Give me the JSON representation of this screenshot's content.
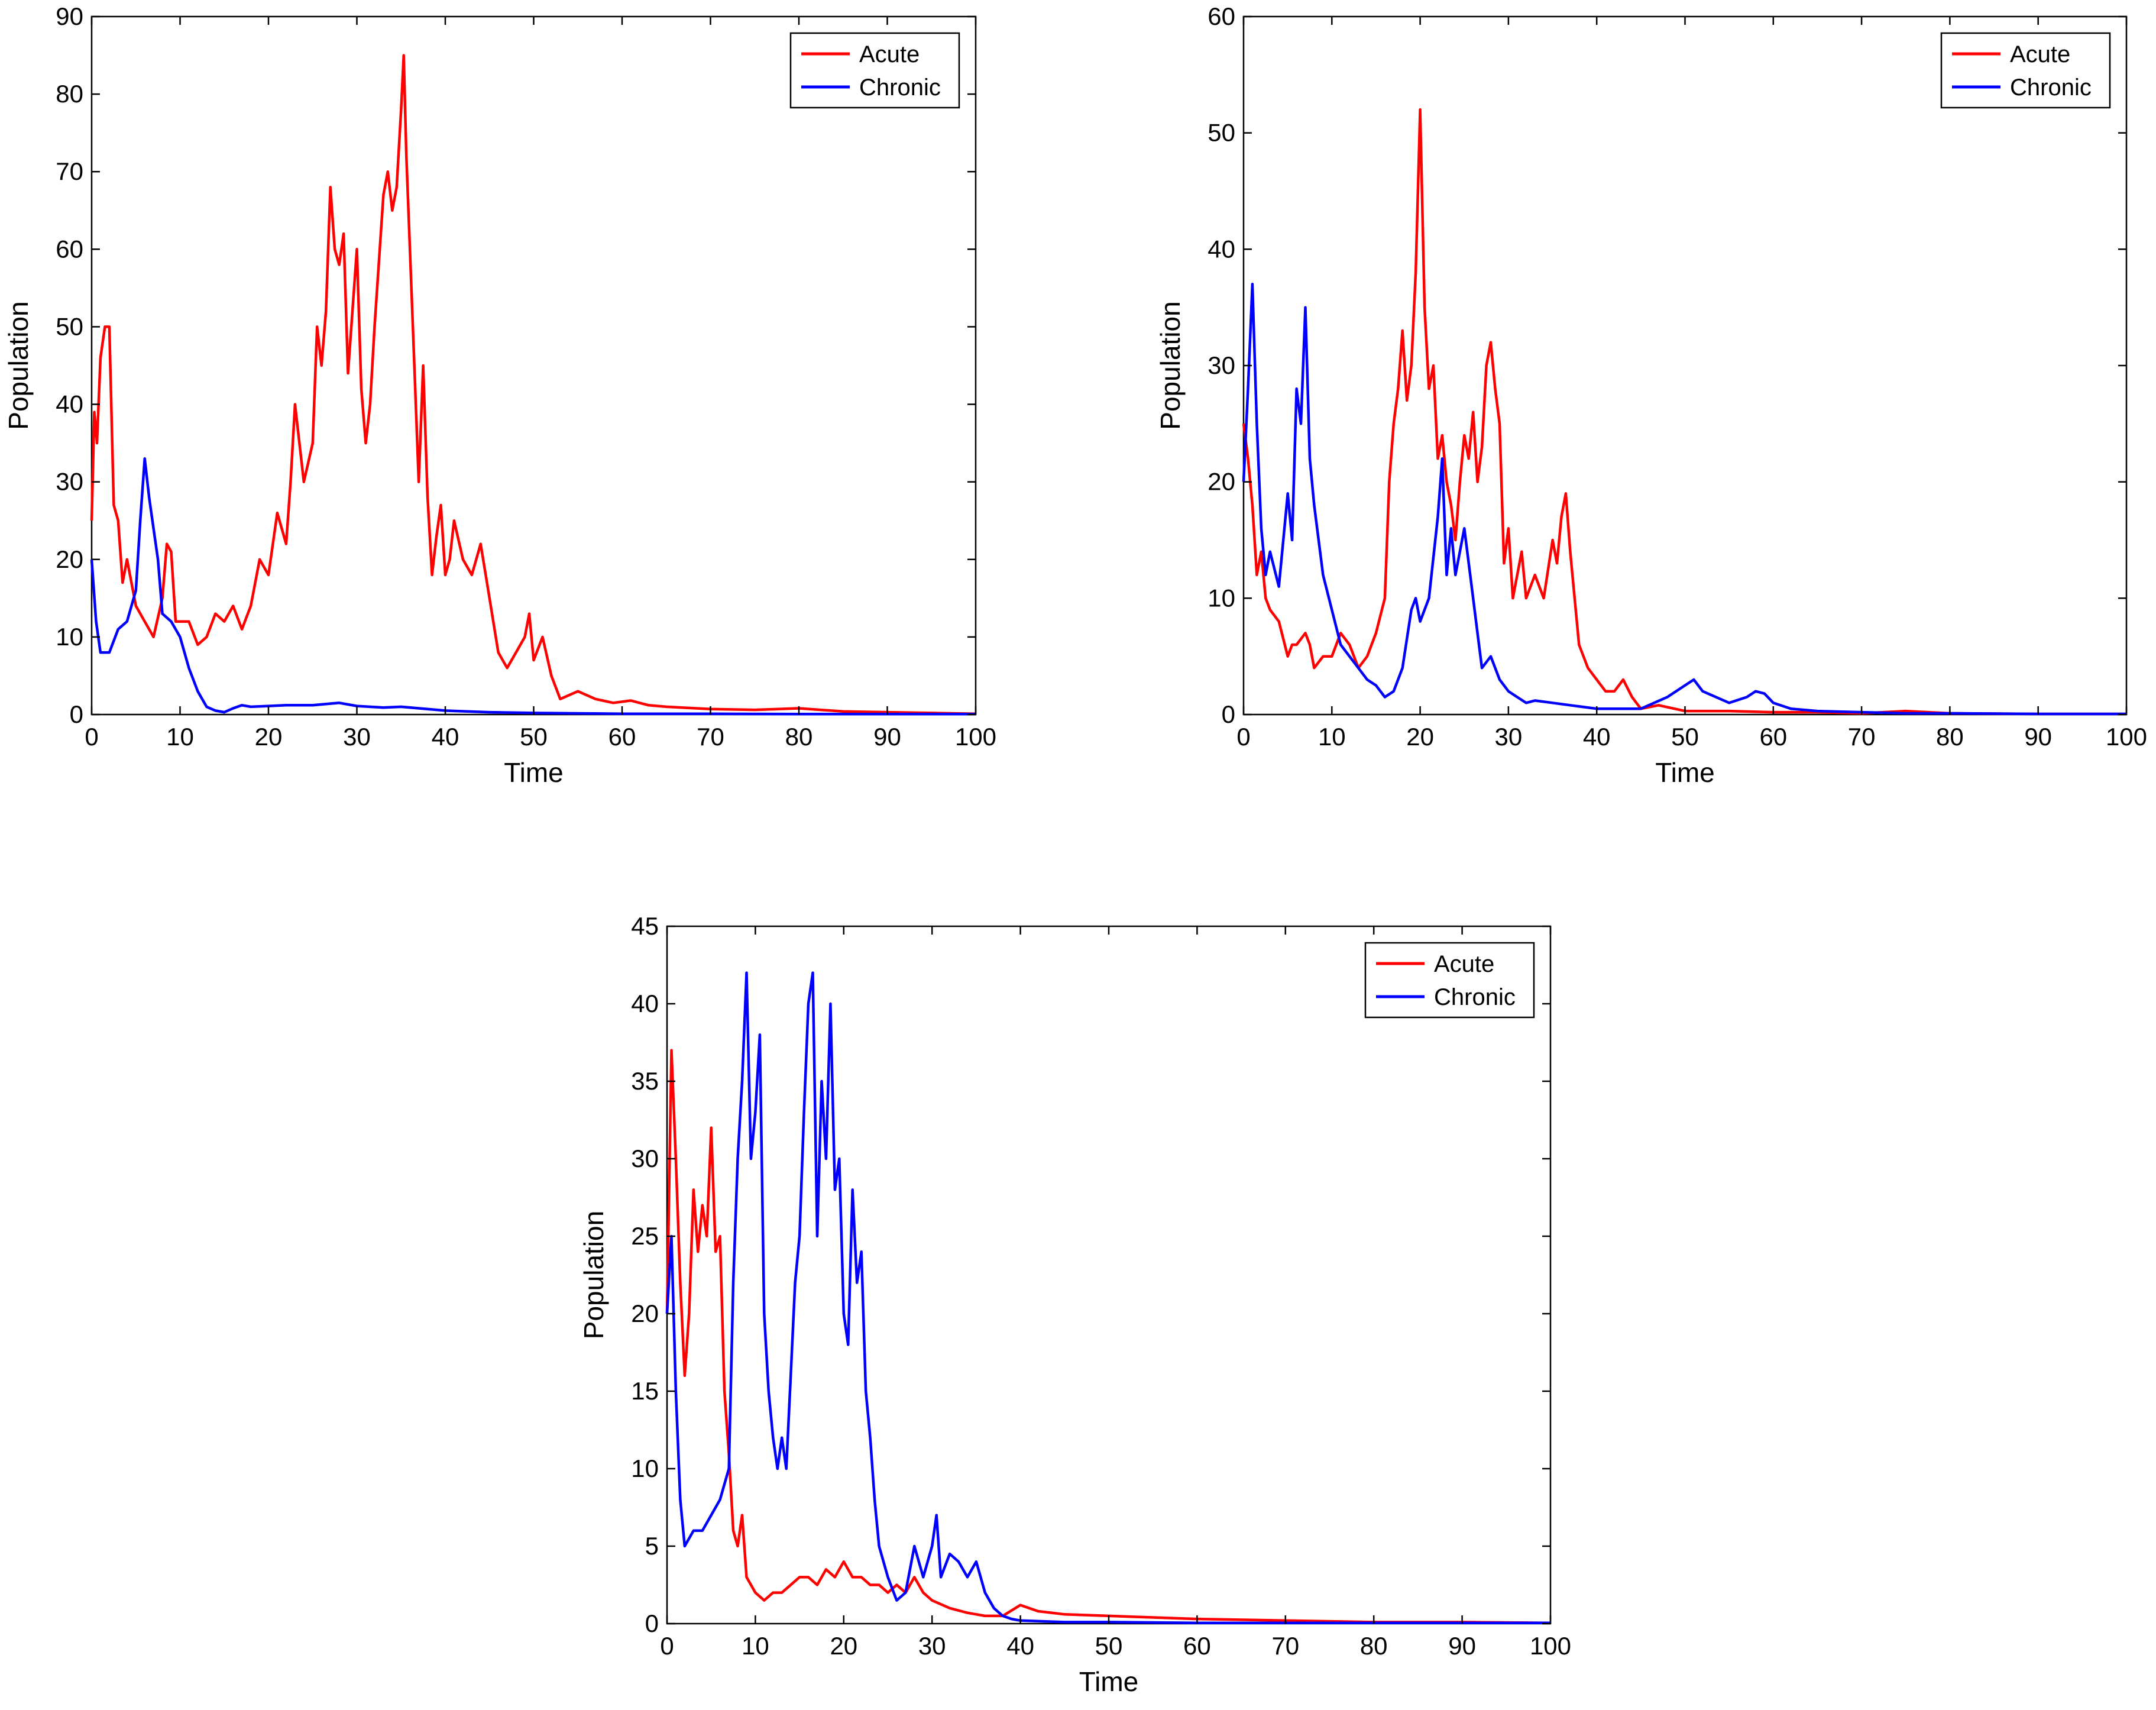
{
  "colors": {
    "acute": "#ff0000",
    "chronic": "#0000ff",
    "axis": "#000000"
  },
  "chart_data": [
    {
      "type": "line",
      "title": "",
      "xlabel": "Time",
      "ylabel": "Population",
      "xlim": [
        0,
        100
      ],
      "ylim": [
        0,
        90
      ],
      "xticks": [
        0,
        10,
        20,
        30,
        40,
        50,
        60,
        70,
        80,
        90,
        100
      ],
      "yticks": [
        0,
        10,
        20,
        30,
        40,
        50,
        60,
        70,
        80,
        90
      ],
      "legend": [
        "Acute",
        "Chronic"
      ],
      "legend_position": "top-right",
      "series": [
        {
          "name": "Acute",
          "color": "#ff0000",
          "x": [
            0,
            0.3,
            0.6,
            1,
            1.5,
            2,
            2.5,
            3,
            3.5,
            4,
            5,
            6,
            7,
            8,
            8.5,
            9,
            9.5,
            10,
            11,
            12,
            13,
            14,
            15,
            16,
            17,
            18,
            19,
            20,
            21,
            22,
            22.5,
            23,
            24,
            25,
            25.5,
            26,
            26.5,
            27,
            27.5,
            28,
            28.5,
            29,
            29.5,
            30,
            30.5,
            31,
            31.5,
            32,
            33,
            33.5,
            34,
            34.5,
            35,
            35.3,
            35.6,
            36,
            36.5,
            37,
            37.5,
            38,
            38.5,
            39,
            39.5,
            40,
            40.5,
            41,
            42,
            43,
            44,
            45,
            46,
            47,
            48,
            49,
            49.5,
            50,
            51,
            52,
            53,
            55,
            57,
            59,
            61,
            63,
            65,
            70,
            75,
            80,
            85,
            90,
            95,
            100
          ],
          "y": [
            25,
            39,
            35,
            46,
            50,
            50,
            27,
            25,
            17,
            20,
            14,
            12,
            10,
            15,
            22,
            21,
            12,
            12,
            12,
            9,
            10,
            13,
            12,
            14,
            11,
            14,
            20,
            18,
            26,
            22,
            30,
            40,
            30,
            35,
            50,
            45,
            52,
            68,
            60,
            58,
            62,
            44,
            52,
            60,
            42,
            35,
            40,
            50,
            67,
            70,
            65,
            68,
            78,
            85,
            72,
            60,
            45,
            30,
            45,
            28,
            18,
            23,
            27,
            18,
            20,
            25,
            20,
            18,
            22,
            15,
            8,
            6,
            8,
            10,
            13,
            7,
            10,
            5,
            2,
            3,
            2,
            1.5,
            1.8,
            1.2,
            1,
            0.7,
            0.6,
            0.8,
            0.4,
            0.3,
            0.2,
            0.1
          ]
        },
        {
          "name": "Chronic",
          "color": "#0000ff",
          "x": [
            0,
            0.5,
            1,
            2,
            3,
            4,
            5,
            5.5,
            6,
            6.5,
            7,
            7.5,
            8,
            9,
            10,
            11,
            12,
            13,
            14,
            15,
            16,
            17,
            18,
            20,
            22,
            25,
            28,
            30,
            33,
            35,
            40,
            45,
            50,
            60,
            70,
            80,
            90,
            100
          ],
          "y": [
            20,
            12,
            8,
            8,
            11,
            12,
            16,
            25,
            33,
            28,
            24,
            20,
            13,
            12,
            10,
            6,
            3,
            1,
            0.5,
            0.3,
            0.8,
            1.2,
            1,
            1.1,
            1.2,
            1.2,
            1.5,
            1.1,
            0.9,
            1,
            0.5,
            0.3,
            0.2,
            0.1,
            0.1,
            0.05,
            0.05,
            0.05
          ]
        }
      ]
    },
    {
      "type": "line",
      "title": "",
      "xlabel": "Time",
      "ylabel": "Population",
      "xlim": [
        0,
        100
      ],
      "ylim": [
        0,
        60
      ],
      "xticks": [
        0,
        10,
        20,
        30,
        40,
        50,
        60,
        70,
        80,
        90,
        100
      ],
      "yticks": [
        0,
        10,
        20,
        30,
        40,
        50,
        60
      ],
      "legend": [
        "Acute",
        "Chronic"
      ],
      "legend_position": "top-right",
      "series": [
        {
          "name": "Acute",
          "color": "#ff0000",
          "x": [
            0,
            0.5,
            1,
            1.5,
            2,
            2.5,
            3,
            4,
            5,
            5.5,
            6,
            7,
            7.5,
            8,
            9,
            10,
            11,
            12,
            13,
            14,
            15,
            16,
            16.5,
            17,
            17.5,
            18,
            18.5,
            19,
            19.5,
            20,
            20.5,
            21,
            21.5,
            22,
            22.5,
            23,
            23.5,
            24,
            24.5,
            25,
            25.5,
            26,
            26.5,
            27,
            27.5,
            28,
            28.5,
            29,
            29.5,
            30,
            30.5,
            31,
            31.5,
            32,
            33,
            34,
            35,
            35.5,
            36,
            36.5,
            37,
            38,
            39,
            40,
            41,
            42,
            43,
            44,
            45,
            47,
            50,
            55,
            60,
            65,
            70,
            75,
            80,
            90,
            100
          ],
          "y": [
            25,
            22,
            18,
            12,
            14,
            10,
            9,
            8,
            5,
            6,
            6,
            7,
            6,
            4,
            5,
            5,
            7,
            6,
            4,
            5,
            7,
            10,
            20,
            25,
            28,
            33,
            27,
            30,
            38,
            52,
            35,
            28,
            30,
            22,
            24,
            20,
            18,
            15,
            20,
            24,
            22,
            26,
            20,
            23,
            30,
            32,
            28,
            25,
            13,
            16,
            10,
            12,
            14,
            10,
            12,
            10,
            15,
            13,
            17,
            19,
            14,
            6,
            4,
            3,
            2,
            2,
            3,
            1.5,
            0.5,
            0.8,
            0.3,
            0.3,
            0.2,
            0.2,
            0.1,
            0.3,
            0.1,
            0.05,
            0.05
          ]
        },
        {
          "name": "Chronic",
          "color": "#0000ff",
          "x": [
            0,
            0.5,
            1,
            1.5,
            2,
            2.5,
            3,
            4,
            5,
            5.5,
            6,
            6.5,
            7,
            7.5,
            8,
            9,
            10,
            11,
            12,
            13,
            14,
            15,
            16,
            17,
            18,
            19,
            19.5,
            20,
            21,
            22,
            22.5,
            23,
            23.5,
            24,
            25,
            26,
            26.5,
            27,
            28,
            29,
            30,
            31,
            32,
            33,
            35,
            37,
            40,
            42,
            45,
            48,
            50,
            51,
            52,
            55,
            57,
            58,
            59,
            60,
            62,
            65,
            70,
            75,
            80,
            90,
            100
          ],
          "y": [
            20,
            28,
            37,
            25,
            16,
            12,
            14,
            11,
            19,
            15,
            28,
            25,
            35,
            22,
            18,
            12,
            9,
            6,
            5,
            4,
            3,
            2.5,
            1.5,
            2,
            4,
            9,
            10,
            8,
            10,
            17,
            22,
            12,
            16,
            12,
            16,
            10,
            7,
            4,
            5,
            3,
            2,
            1.5,
            1,
            1.2,
            1,
            0.8,
            0.5,
            0.5,
            0.5,
            1.5,
            2.5,
            3,
            2,
            1,
            1.5,
            2,
            1.8,
            1,
            0.5,
            0.3,
            0.2,
            0.1,
            0.1,
            0.05,
            0.05
          ]
        }
      ]
    },
    {
      "type": "line",
      "title": "",
      "xlabel": "Time",
      "ylabel": "Population",
      "xlim": [
        0,
        100
      ],
      "ylim": [
        0,
        45
      ],
      "xticks": [
        0,
        10,
        20,
        30,
        40,
        50,
        60,
        70,
        80,
        90,
        100
      ],
      "yticks": [
        0,
        5,
        10,
        15,
        20,
        25,
        30,
        35,
        40,
        45
      ],
      "legend": [
        "Acute",
        "Chronic"
      ],
      "legend_position": "top-right",
      "series": [
        {
          "name": "Acute",
          "color": "#ff0000",
          "x": [
            0,
            0.5,
            1,
            1.5,
            2,
            2.5,
            3,
            3.5,
            4,
            4.5,
            5,
            5.5,
            6,
            6.5,
            7,
            7.5,
            8,
            8.5,
            9,
            10,
            11,
            12,
            13,
            14,
            15,
            16,
            17,
            18,
            19,
            20,
            21,
            22,
            23,
            24,
            25,
            26,
            27,
            28,
            29,
            30,
            32,
            34,
            36,
            38,
            40,
            42,
            45,
            50,
            55,
            60,
            70,
            80,
            90,
            100
          ],
          "y": [
            20,
            37,
            30,
            22,
            16,
            20,
            28,
            24,
            27,
            25,
            32,
            24,
            25,
            15,
            11,
            6,
            5,
            7,
            3,
            2,
            1.5,
            2,
            2,
            2.5,
            3,
            3,
            2.5,
            3.5,
            3,
            4,
            3,
            3,
            2.5,
            2.5,
            2,
            2.5,
            2,
            3,
            2,
            1.5,
            1,
            0.7,
            0.5,
            0.5,
            1.2,
            0.8,
            0.6,
            0.5,
            0.4,
            0.3,
            0.2,
            0.1,
            0.1,
            0.05
          ]
        },
        {
          "name": "Chronic",
          "color": "#0000ff",
          "x": [
            0,
            0.5,
            1,
            1.5,
            2,
            3,
            4,
            5,
            6,
            7,
            7.5,
            8,
            8.5,
            9,
            9.5,
            10,
            10.5,
            11,
            11.5,
            12,
            12.5,
            13,
            13.5,
            14,
            14.5,
            15,
            15.5,
            16,
            16.5,
            17,
            17.5,
            18,
            18.5,
            19,
            19.5,
            20,
            20.5,
            21,
            21.5,
            22,
            22.5,
            23,
            23.5,
            24,
            25,
            26,
            27,
            28,
            29,
            30,
            30.5,
            31,
            32,
            33,
            34,
            35,
            36,
            37,
            38,
            39,
            40,
            45,
            50,
            60,
            70,
            80,
            90,
            100
          ],
          "y": [
            20,
            25,
            15,
            8,
            5,
            6,
            6,
            7,
            8,
            10,
            22,
            30,
            35,
            42,
            30,
            33,
            38,
            20,
            15,
            12,
            10,
            12,
            10,
            16,
            22,
            25,
            33,
            40,
            42,
            25,
            35,
            30,
            40,
            28,
            30,
            20,
            18,
            28,
            22,
            24,
            15,
            12,
            8,
            5,
            3,
            1.5,
            2,
            5,
            3,
            5,
            7,
            3,
            4.5,
            4,
            3,
            4,
            2,
            1,
            0.5,
            0.3,
            0.2,
            0.1,
            0.1,
            0.05,
            0.05,
            0.05,
            0.05,
            0.05
          ]
        }
      ]
    }
  ]
}
